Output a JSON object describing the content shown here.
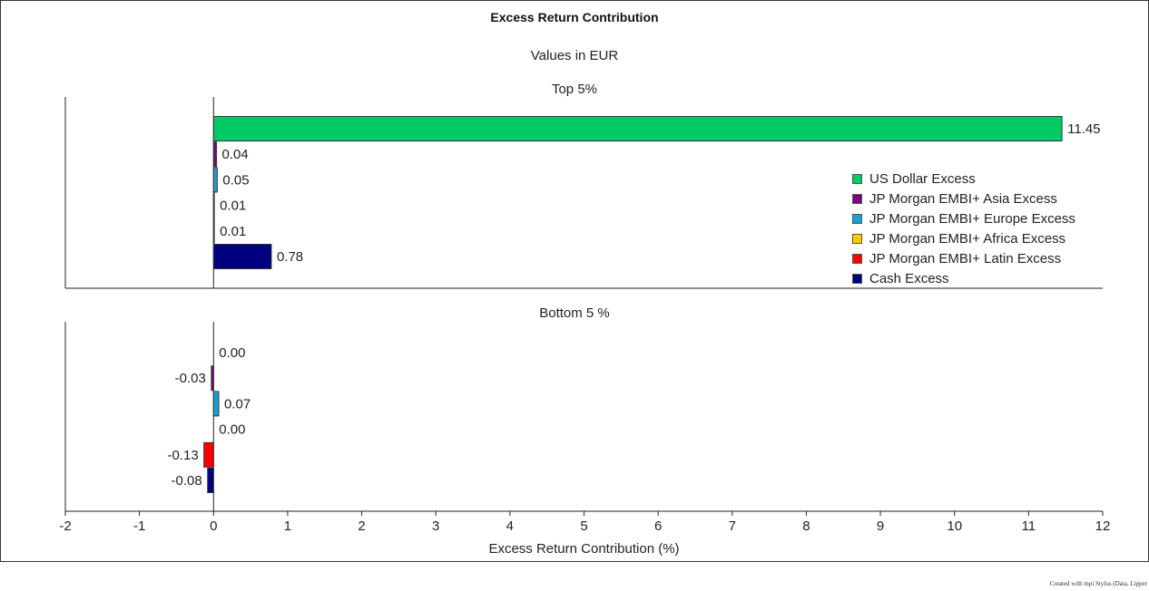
{
  "title": "Excess Return Contribution",
  "subtitle": "Values in EUR",
  "footer": "Created with mpi Stylus (Data, Lipper",
  "chart_data": {
    "type": "bar",
    "orientation": "horizontal",
    "xlabel": "Excess Return Contribution (%)",
    "xlim": [
      -2,
      12
    ],
    "xticks": [
      -2,
      -1,
      0,
      1,
      2,
      3,
      4,
      5,
      6,
      7,
      8,
      9,
      10,
      11,
      12
    ],
    "legend_position": "right",
    "series": [
      {
        "name": "US Dollar Excess",
        "color": "#00cc66"
      },
      {
        "name": "JP Morgan EMBI+ Asia Excess",
        "color": "#800080"
      },
      {
        "name": "JP Morgan EMBI+ Europe Excess",
        "color": "#1a9fd8"
      },
      {
        "name": "JP Morgan EMBI+ Africa Excess",
        "color": "#ffcc00"
      },
      {
        "name": "JP Morgan EMBI+ Latin Excess",
        "color": "#ff0000"
      },
      {
        "name": "Cash Excess",
        "color": "#000080"
      }
    ],
    "panels": [
      {
        "title": "Top 5%",
        "values": [
          11.45,
          0.04,
          0.05,
          0.01,
          0.01,
          0.78
        ],
        "labels": [
          "11.45",
          "0.04",
          "0.05",
          "0.01",
          "0.01",
          "0.78"
        ]
      },
      {
        "title": "Bottom 5 %",
        "values": [
          0.0,
          -0.03,
          0.07,
          0.0,
          -0.13,
          -0.08
        ],
        "labels": [
          "0.00",
          "-0.03",
          "0.07",
          "0.00",
          "-0.13",
          "-0.08"
        ]
      }
    ]
  }
}
